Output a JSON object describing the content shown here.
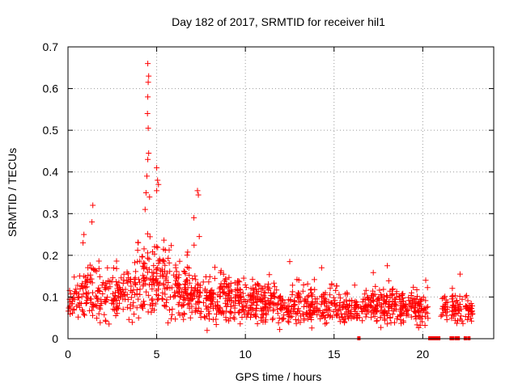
{
  "chart_data": {
    "type": "scatter",
    "title": "Day 182 of 2017, SRMTID for receiver hil1",
    "xlabel": "GPS time / hours",
    "ylabel": "SRMTID / TECUs",
    "xlim": [
      0,
      24
    ],
    "ylim": [
      0,
      0.7
    ],
    "xticks": [
      0,
      5,
      10,
      15,
      20
    ],
    "yticks": [
      0,
      0.1,
      0.2,
      0.3,
      0.4,
      0.5,
      0.6,
      0.7
    ],
    "ytick_labels": [
      "0",
      "0.1",
      "0.2",
      "0.3",
      "0.4",
      "0.5",
      "0.6",
      "0.7"
    ],
    "grid": true,
    "marker": "+",
    "color": "#ff0000",
    "peaks": [
      {
        "x": 1.4,
        "y": 0.32
      },
      {
        "x": 1.35,
        "y": 0.28
      },
      {
        "x": 0.9,
        "y": 0.25
      },
      {
        "x": 0.85,
        "y": 0.23
      },
      {
        "x": 4.5,
        "y": 0.66
      },
      {
        "x": 4.55,
        "y": 0.63
      },
      {
        "x": 4.52,
        "y": 0.615
      },
      {
        "x": 4.5,
        "y": 0.58
      },
      {
        "x": 4.48,
        "y": 0.54
      },
      {
        "x": 4.52,
        "y": 0.505
      },
      {
        "x": 4.55,
        "y": 0.445
      },
      {
        "x": 4.5,
        "y": 0.43
      },
      {
        "x": 4.45,
        "y": 0.39
      },
      {
        "x": 4.4,
        "y": 0.35
      },
      {
        "x": 4.6,
        "y": 0.34
      },
      {
        "x": 4.35,
        "y": 0.31
      },
      {
        "x": 5.0,
        "y": 0.41
      },
      {
        "x": 5.05,
        "y": 0.38
      },
      {
        "x": 5.1,
        "y": 0.37
      },
      {
        "x": 5.0,
        "y": 0.355
      },
      {
        "x": 7.3,
        "y": 0.355
      },
      {
        "x": 7.35,
        "y": 0.345
      },
      {
        "x": 7.1,
        "y": 0.29
      },
      {
        "x": 7.4,
        "y": 0.245
      },
      {
        "x": 12.5,
        "y": 0.185
      },
      {
        "x": 14.3,
        "y": 0.17
      },
      {
        "x": 18.0,
        "y": 0.175
      },
      {
        "x": 22.1,
        "y": 0.155
      }
    ],
    "zero_markers_x": [
      16.4,
      20.4,
      20.5,
      20.6,
      20.7,
      20.8,
      20.9,
      21.6,
      21.7,
      21.9,
      22.0,
      22.4,
      22.6
    ],
    "coverage_gaps": [
      [
        20.3,
        21.0
      ],
      [
        21.4,
        21.6
      ],
      [
        22.3,
        22.4
      ]
    ],
    "baseline_envelope": [
      {
        "x": 0,
        "mean": 0.08,
        "spread": 0.04
      },
      {
        "x": 1,
        "mean": 0.11,
        "spread": 0.07
      },
      {
        "x": 2,
        "mean": 0.1,
        "spread": 0.07
      },
      {
        "x": 3,
        "mean": 0.1,
        "spread": 0.06
      },
      {
        "x": 4,
        "mean": 0.13,
        "spread": 0.09
      },
      {
        "x": 5,
        "mean": 0.15,
        "spread": 0.1
      },
      {
        "x": 6,
        "mean": 0.1,
        "spread": 0.07
      },
      {
        "x": 7,
        "mean": 0.11,
        "spread": 0.07
      },
      {
        "x": 8,
        "mean": 0.09,
        "spread": 0.06
      },
      {
        "x": 9,
        "mean": 0.1,
        "spread": 0.06
      },
      {
        "x": 10,
        "mean": 0.09,
        "spread": 0.05
      },
      {
        "x": 12,
        "mean": 0.08,
        "spread": 0.05
      },
      {
        "x": 14,
        "mean": 0.08,
        "spread": 0.05
      },
      {
        "x": 16,
        "mean": 0.07,
        "spread": 0.04
      },
      {
        "x": 18,
        "mean": 0.08,
        "spread": 0.05
      },
      {
        "x": 20,
        "mean": 0.07,
        "spread": 0.04
      },
      {
        "x": 22,
        "mean": 0.07,
        "spread": 0.04
      },
      {
        "x": 23,
        "mean": 0.06,
        "spread": 0.03
      }
    ]
  }
}
